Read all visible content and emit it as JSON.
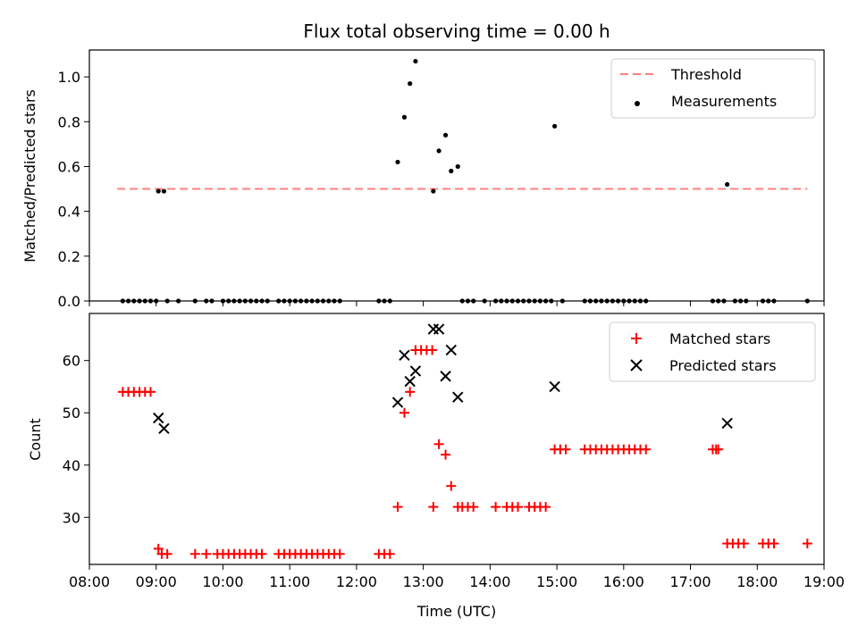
{
  "title": "Flux total observing time = 0.00 h",
  "chart_data": [
    {
      "type": "scatter",
      "ylabel": "Matched/Predicted stars",
      "xlabel": "",
      "xlim": [
        "08:00",
        "19:00"
      ],
      "ylim": [
        0,
        1.12
      ],
      "grid": false,
      "legend_position": "top-right",
      "yticks": [
        "0.0",
        "0.2",
        "0.4",
        "0.6",
        "0.8",
        "1.0"
      ],
      "threshold": {
        "name": "Threshold",
        "value": 0.5,
        "x_range": [
          "08:25",
          "18:45"
        ],
        "color": "#ff7f7f",
        "style": "dashed"
      },
      "series": [
        {
          "name": "Measurements",
          "color": "#000000",
          "marker": "dot",
          "points": [
            [
              "08:30",
              0
            ],
            [
              "08:35",
              0
            ],
            [
              "08:40",
              0
            ],
            [
              "08:45",
              0
            ],
            [
              "08:50",
              0
            ],
            [
              "08:55",
              0
            ],
            [
              "09:00",
              0
            ],
            [
              "09:02",
              0.49
            ],
            [
              "09:07",
              0.49
            ],
            [
              "09:10",
              0
            ],
            [
              "09:20",
              0
            ],
            [
              "09:35",
              0
            ],
            [
              "09:45",
              0
            ],
            [
              "09:50",
              0
            ],
            [
              "10:00",
              0
            ],
            [
              "10:05",
              0
            ],
            [
              "10:10",
              0
            ],
            [
              "10:15",
              0
            ],
            [
              "10:20",
              0
            ],
            [
              "10:25",
              0
            ],
            [
              "10:30",
              0
            ],
            [
              "10:35",
              0
            ],
            [
              "10:40",
              0
            ],
            [
              "10:50",
              0
            ],
            [
              "10:55",
              0
            ],
            [
              "11:00",
              0
            ],
            [
              "11:05",
              0
            ],
            [
              "11:10",
              0
            ],
            [
              "11:15",
              0
            ],
            [
              "11:20",
              0
            ],
            [
              "11:25",
              0
            ],
            [
              "11:30",
              0
            ],
            [
              "11:35",
              0
            ],
            [
              "11:40",
              0
            ],
            [
              "11:45",
              0
            ],
            [
              "12:20",
              0
            ],
            [
              "12:25",
              0
            ],
            [
              "12:30",
              0
            ],
            [
              "12:37",
              0.62
            ],
            [
              "12:43",
              0.82
            ],
            [
              "12:48",
              0.97
            ],
            [
              "12:53",
              1.07
            ],
            [
              "13:09",
              0.49
            ],
            [
              "13:14",
              0.67
            ],
            [
              "13:20",
              0.74
            ],
            [
              "13:25",
              0.58
            ],
            [
              "13:31",
              0.6
            ],
            [
              "13:35",
              0
            ],
            [
              "13:40",
              0
            ],
            [
              "13:45",
              0
            ],
            [
              "13:55",
              0
            ],
            [
              "14:05",
              0
            ],
            [
              "14:10",
              0
            ],
            [
              "14:15",
              0
            ],
            [
              "14:20",
              0
            ],
            [
              "14:25",
              0
            ],
            [
              "14:30",
              0
            ],
            [
              "14:35",
              0
            ],
            [
              "14:40",
              0
            ],
            [
              "14:45",
              0
            ],
            [
              "14:50",
              0
            ],
            [
              "14:55",
              0
            ],
            [
              "15:05",
              0
            ],
            [
              "15:25",
              0
            ],
            [
              "15:30",
              0
            ],
            [
              "15:35",
              0
            ],
            [
              "15:40",
              0
            ],
            [
              "15:45",
              0
            ],
            [
              "15:50",
              0
            ],
            [
              "15:55",
              0
            ],
            [
              "16:00",
              0
            ],
            [
              "16:05",
              0
            ],
            [
              "16:10",
              0
            ],
            [
              "16:15",
              0
            ],
            [
              "16:20",
              0
            ],
            [
              "14:58",
              0.78
            ],
            [
              "17:20",
              0
            ],
            [
              "17:25",
              0
            ],
            [
              "17:30",
              0
            ],
            [
              "17:40",
              0
            ],
            [
              "17:45",
              0
            ],
            [
              "17:50",
              0
            ],
            [
              "17:33",
              0.52
            ],
            [
              "18:05",
              0
            ],
            [
              "18:10",
              0
            ],
            [
              "18:15",
              0
            ],
            [
              "18:45",
              0
            ]
          ]
        }
      ]
    },
    {
      "type": "scatter",
      "ylabel": "Count",
      "xlabel": "Time (UTC)",
      "xlim": [
        "08:00",
        "19:00"
      ],
      "ylim": [
        21,
        69
      ],
      "grid": false,
      "legend_position": "top-right",
      "xticks": [
        "08:00",
        "09:00",
        "10:00",
        "11:00",
        "12:00",
        "13:00",
        "14:00",
        "15:00",
        "16:00",
        "17:00",
        "18:00",
        "19:00"
      ],
      "yticks": [
        "30",
        "40",
        "50",
        "60"
      ],
      "series": [
        {
          "name": "Matched stars",
          "color": "#ff0000",
          "marker": "plus",
          "points": [
            [
              "08:30",
              54
            ],
            [
              "08:35",
              54
            ],
            [
              "08:40",
              54
            ],
            [
              "08:45",
              54
            ],
            [
              "08:50",
              54
            ],
            [
              "08:55",
              54
            ],
            [
              "09:02",
              24
            ],
            [
              "09:05",
              23
            ],
            [
              "09:10",
              23
            ],
            [
              "09:35",
              23
            ],
            [
              "09:45",
              23
            ],
            [
              "09:55",
              23
            ],
            [
              "10:00",
              23
            ],
            [
              "10:05",
              23
            ],
            [
              "10:10",
              23
            ],
            [
              "10:15",
              23
            ],
            [
              "10:20",
              23
            ],
            [
              "10:25",
              23
            ],
            [
              "10:30",
              23
            ],
            [
              "10:35",
              23
            ],
            [
              "10:50",
              23
            ],
            [
              "10:55",
              23
            ],
            [
              "11:00",
              23
            ],
            [
              "11:05",
              23
            ],
            [
              "11:10",
              23
            ],
            [
              "11:15",
              23
            ],
            [
              "11:20",
              23
            ],
            [
              "11:25",
              23
            ],
            [
              "11:30",
              23
            ],
            [
              "11:35",
              23
            ],
            [
              "11:40",
              23
            ],
            [
              "11:45",
              23
            ],
            [
              "12:20",
              23
            ],
            [
              "12:25",
              23
            ],
            [
              "12:30",
              23
            ],
            [
              "12:37",
              32
            ],
            [
              "12:43",
              50
            ],
            [
              "12:48",
              54
            ],
            [
              "12:53",
              62
            ],
            [
              "12:58",
              62
            ],
            [
              "13:03",
              62
            ],
            [
              "13:08",
              62
            ],
            [
              "13:09",
              32
            ],
            [
              "13:14",
              44
            ],
            [
              "13:20",
              42
            ],
            [
              "13:25",
              36
            ],
            [
              "13:31",
              32
            ],
            [
              "13:35",
              32
            ],
            [
              "13:40",
              32
            ],
            [
              "13:45",
              32
            ],
            [
              "14:05",
              32
            ],
            [
              "14:15",
              32
            ],
            [
              "14:20",
              32
            ],
            [
              "14:25",
              32
            ],
            [
              "14:35",
              32
            ],
            [
              "14:40",
              32
            ],
            [
              "14:45",
              32
            ],
            [
              "14:50",
              32
            ],
            [
              "14:58",
              43
            ],
            [
              "15:03",
              43
            ],
            [
              "15:08",
              43
            ],
            [
              "15:25",
              43
            ],
            [
              "15:30",
              43
            ],
            [
              "15:35",
              43
            ],
            [
              "15:40",
              43
            ],
            [
              "15:45",
              43
            ],
            [
              "15:50",
              43
            ],
            [
              "15:55",
              43
            ],
            [
              "16:00",
              43
            ],
            [
              "16:05",
              43
            ],
            [
              "16:10",
              43
            ],
            [
              "16:15",
              43
            ],
            [
              "16:20",
              43
            ],
            [
              "17:20",
              43
            ],
            [
              "17:23",
              43
            ],
            [
              "17:25",
              43
            ],
            [
              "17:33",
              25
            ],
            [
              "17:38",
              25
            ],
            [
              "17:43",
              25
            ],
            [
              "17:48",
              25
            ],
            [
              "18:05",
              25
            ],
            [
              "18:10",
              25
            ],
            [
              "18:15",
              25
            ],
            [
              "18:45",
              25
            ]
          ]
        },
        {
          "name": "Predicted stars",
          "color": "#000000",
          "marker": "x",
          "points": [
            [
              "09:02",
              49
            ],
            [
              "09:07",
              47
            ],
            [
              "12:37",
              52
            ],
            [
              "12:43",
              61
            ],
            [
              "12:48",
              56
            ],
            [
              "12:53",
              58
            ],
            [
              "13:09",
              66
            ],
            [
              "13:14",
              66
            ],
            [
              "13:20",
              57
            ],
            [
              "13:25",
              62
            ],
            [
              "13:31",
              53
            ],
            [
              "14:58",
              55
            ],
            [
              "17:33",
              48
            ]
          ]
        }
      ]
    }
  ]
}
